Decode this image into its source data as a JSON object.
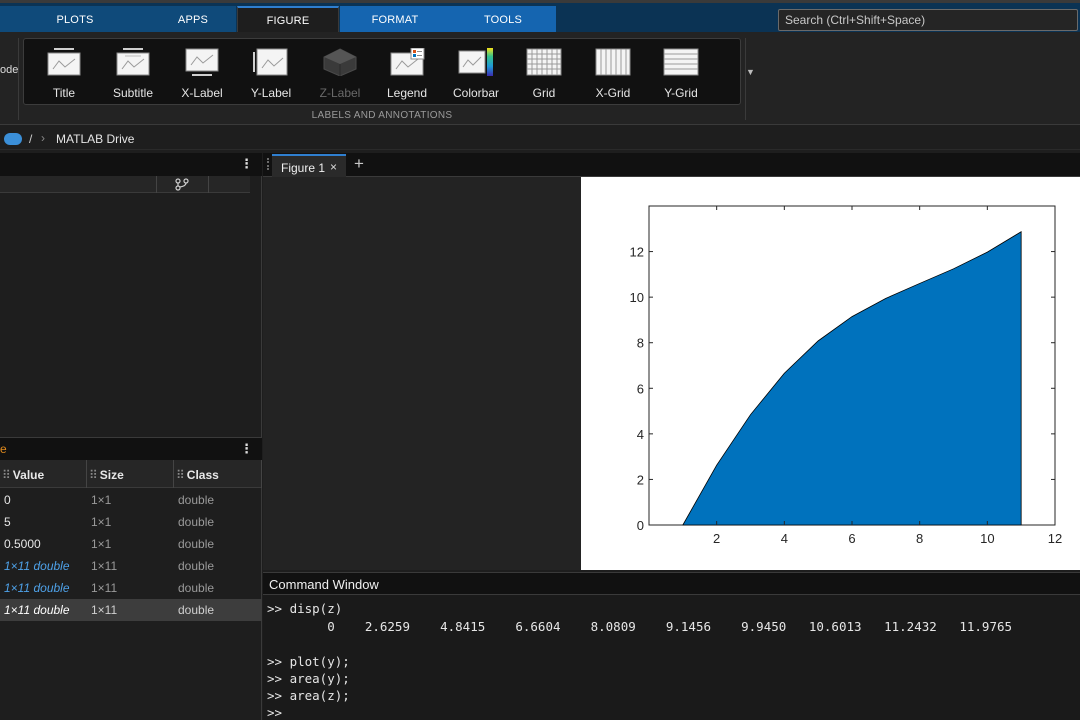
{
  "tabs": [
    {
      "label": "PLOTS"
    },
    {
      "label": "APPS"
    },
    {
      "label": "FIGURE"
    },
    {
      "label": "FORMAT"
    },
    {
      "label": "TOOLS"
    }
  ],
  "search": {
    "placeholder": "Search (Ctrl+Shift+Space)"
  },
  "ribbon": {
    "left_cut_label": "ode",
    "buttons": [
      {
        "label": "Title",
        "icon": "title-icon"
      },
      {
        "label": "Subtitle",
        "icon": "subtitle-icon"
      },
      {
        "label": "X-Label",
        "icon": "x-label-icon"
      },
      {
        "label": "Y-Label",
        "icon": "y-label-icon"
      },
      {
        "label": "Z-Label",
        "icon": "z-label-icon",
        "disabled": true
      },
      {
        "label": "Legend",
        "icon": "legend-icon"
      },
      {
        "label": "Colorbar",
        "icon": "colorbar-icon"
      },
      {
        "label": "Grid",
        "icon": "grid-icon"
      },
      {
        "label": "X-Grid",
        "icon": "x-grid-icon"
      },
      {
        "label": "Y-Grid",
        "icon": "y-grid-icon"
      }
    ],
    "group_title": "LABELS AND ANNOTATIONS"
  },
  "address": {
    "slash": "/",
    "chevron": "›",
    "path": "MATLAB Drive"
  },
  "workspace": {
    "cut_title": "e",
    "columns": {
      "value": "Value",
      "size": "Size",
      "class": "Class"
    },
    "rows": [
      {
        "value": "0",
        "size": "1×1",
        "class": "double",
        "style": "plain"
      },
      {
        "value": "5",
        "size": "1×1",
        "class": "double",
        "style": "plain"
      },
      {
        "value": "0.5000",
        "size": "1×1",
        "class": "double",
        "style": "plain"
      },
      {
        "value": "1×11 double",
        "size": "1×11",
        "class": "double",
        "style": "link"
      },
      {
        "value": "1×11 double",
        "size": "1×11",
        "class": "double",
        "style": "link"
      },
      {
        "value": "1×11 double",
        "size": "1×11",
        "class": "double",
        "style": "selected"
      }
    ]
  },
  "figure": {
    "tab_label": "Figure 1",
    "close": "×",
    "add": "+"
  },
  "chart_data": {
    "type": "area",
    "x": [
      1,
      2,
      3,
      4,
      5,
      6,
      7,
      8,
      9,
      10,
      11
    ],
    "series": [
      {
        "values": [
          0,
          2.6259,
          4.8415,
          6.6604,
          8.0809,
          9.1456,
          9.945,
          10.6013,
          11.2432,
          11.9765,
          12.87
        ]
      }
    ],
    "xlim": [
      0,
      12
    ],
    "ylim": [
      0,
      14
    ],
    "xticks": [
      "2",
      "4",
      "6",
      "8",
      "10",
      "12"
    ],
    "yticks": [
      "0",
      "2",
      "4",
      "6",
      "8",
      "10",
      "12"
    ],
    "title": "",
    "xlabel": "",
    "ylabel": "",
    "grid": false,
    "fill_color": "#0072bd"
  },
  "command_window": {
    "title": "Command Window",
    "lines": [
      ">> disp(z)",
      "        0    2.6259    4.8415    6.6604    8.0809    9.1456    9.9450   10.6013   11.2432   11.9765",
      "",
      ">> plot(y);",
      ">> area(y);",
      ">> area(z);",
      ">>"
    ]
  }
}
